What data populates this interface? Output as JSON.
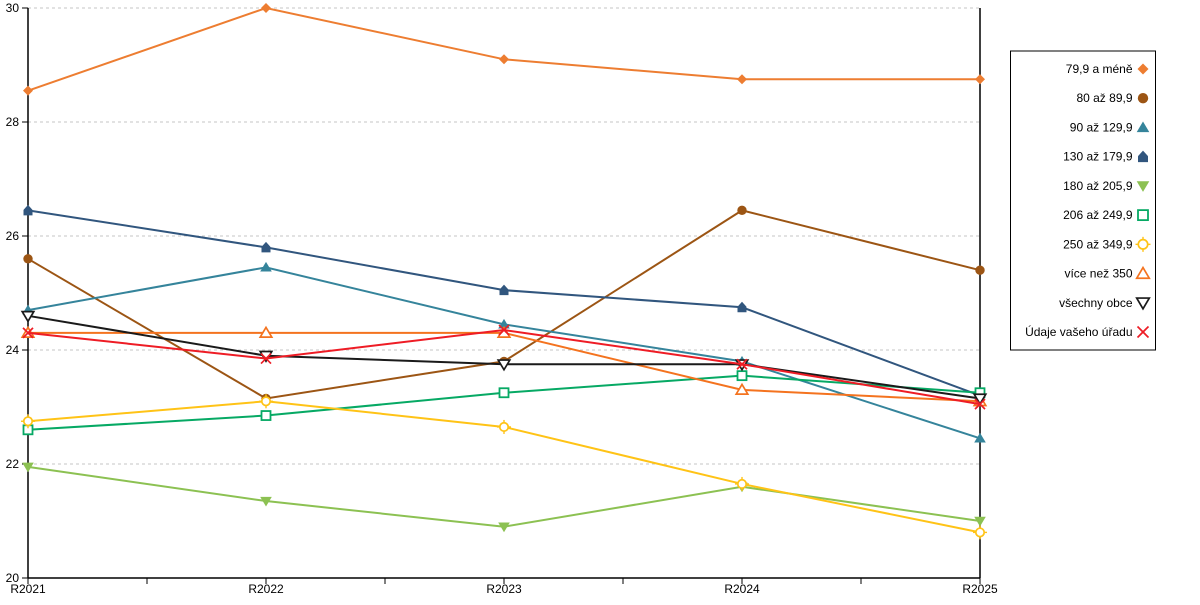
{
  "chart_data": {
    "type": "line",
    "title": "",
    "xlabel": "",
    "ylabel": "",
    "categories": [
      "R2021",
      "R2022",
      "R2023",
      "R2024",
      "R2025"
    ],
    "ylim": [
      20,
      30
    ],
    "ytick_interval": 2,
    "yticks": [
      20,
      22,
      24,
      26,
      28,
      30
    ],
    "grid": "horizontal-dashed",
    "gridline_color": "#c6c6c6",
    "axis_color": "#000000",
    "legend_position": "right-box",
    "series": [
      {
        "name": "79,9 a méně",
        "color": "#ED7D31",
        "marker": "diamond",
        "values": [
          28.55,
          30.0,
          29.1,
          28.75,
          28.75
        ]
      },
      {
        "name": "80 až 89,9",
        "color": "#9C5514",
        "marker": "circle",
        "values": [
          25.6,
          23.15,
          23.8,
          26.45,
          25.4
        ]
      },
      {
        "name": "90 až 129,9",
        "color": "#35849B",
        "marker": "triangle-up",
        "values": [
          24.7,
          25.45,
          24.45,
          23.8,
          22.45
        ]
      },
      {
        "name": "130 až 179,9",
        "color": "#31567E",
        "marker": "house",
        "values": [
          26.45,
          25.8,
          25.05,
          24.75,
          23.2
        ]
      },
      {
        "name": "180 až 205,9",
        "color": "#8CC152",
        "marker": "triangle-down",
        "values": [
          21.95,
          21.35,
          20.9,
          21.6,
          21.0
        ]
      },
      {
        "name": "206 až 249,9",
        "color": "#06A964",
        "marker": "square-open",
        "values": [
          22.6,
          22.85,
          23.25,
          23.55,
          23.25
        ]
      },
      {
        "name": "250 až 349,9",
        "color": "#FFC316",
        "marker": "circle-plus-open",
        "values": [
          22.75,
          23.1,
          22.65,
          21.65,
          20.8
        ]
      },
      {
        "name": "více než 350",
        "color": "#F4731F",
        "marker": "triangle-up-open",
        "values": [
          24.3,
          24.3,
          24.3,
          23.3,
          23.1
        ]
      },
      {
        "name": "všechny obce",
        "color": "#1A1A1A",
        "marker": "triangle-down-open",
        "values": [
          24.6,
          23.9,
          23.75,
          23.75,
          23.15
        ]
      },
      {
        "name": "Údaje vašeho úřadu",
        "color": "#EE1C25",
        "marker": "x",
        "values": [
          24.3,
          23.85,
          24.35,
          23.75,
          23.05
        ]
      }
    ]
  }
}
